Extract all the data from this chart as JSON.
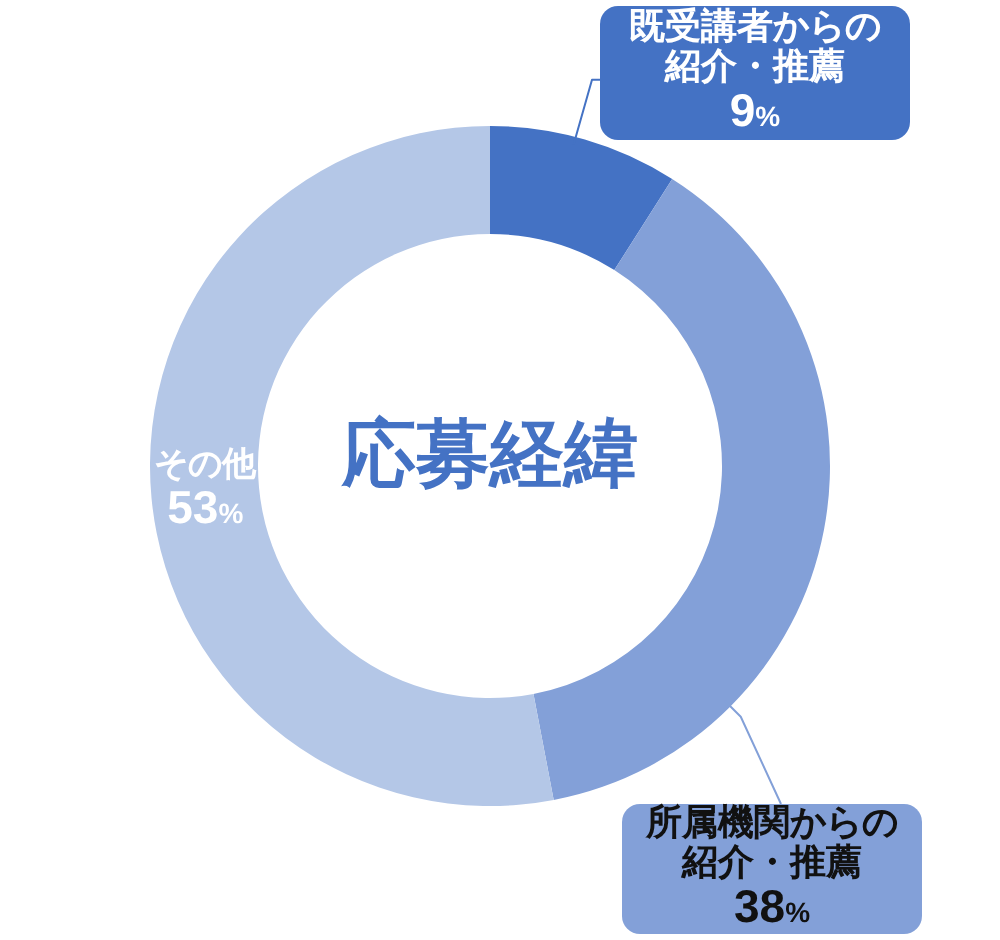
{
  "chart_data": {
    "type": "donut",
    "title": "応募経緯",
    "categories": [
      "既受講者からの紹介・推薦",
      "所属機関からの紹介・推薦",
      "その他"
    ],
    "values": [
      9,
      38,
      53
    ],
    "colors": [
      "#4472c4",
      "#83a0d8",
      "#b4c7e7"
    ],
    "value_labels": [
      "9%",
      "38%",
      "53%"
    ]
  }
}
